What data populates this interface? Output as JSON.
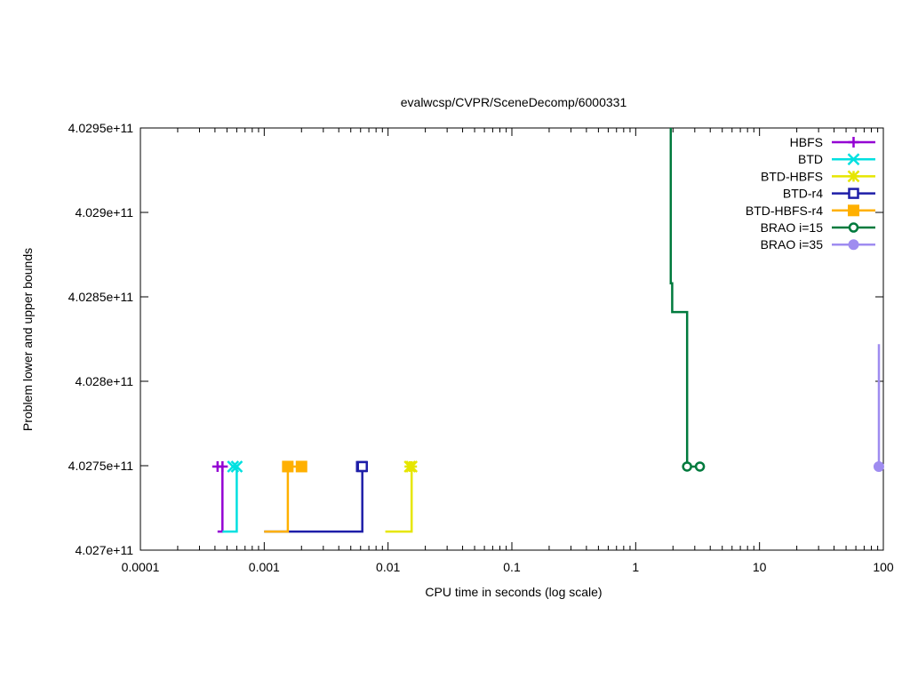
{
  "chart_data": {
    "type": "line",
    "title": "evalwcsp/CVPR/SceneDecomp/6000331",
    "xlabel": "CPU time in seconds (log scale)",
    "ylabel": "Problem lower and upper bounds",
    "xscale": "log",
    "xlim": [
      0.0001,
      100
    ],
    "ylim": [
      402700000000,
      402950000000
    ],
    "x_ticks": [
      {
        "value": 0.0001,
        "label": "0.0001"
      },
      {
        "value": 0.001,
        "label": "0.001"
      },
      {
        "value": 0.01,
        "label": "0.01"
      },
      {
        "value": 0.1,
        "label": "0.1"
      },
      {
        "value": 1,
        "label": "1"
      },
      {
        "value": 10,
        "label": "10"
      },
      {
        "value": 100,
        "label": "100"
      }
    ],
    "y_ticks": [
      {
        "value": 402700000000,
        "label": "4.027e+11"
      },
      {
        "value": 402750000000,
        "label": "4.0275e+11"
      },
      {
        "value": 402800000000,
        "label": "4.028e+11"
      },
      {
        "value": 402850000000,
        "label": "4.0285e+11"
      },
      {
        "value": 402900000000,
        "label": "4.029e+11"
      },
      {
        "value": 402950000000,
        "label": "4.0295e+11"
      }
    ],
    "grid": false,
    "legend_position": "top-right",
    "series": [
      {
        "name": "HBFS",
        "color": "#9400d3",
        "marker": "plus",
        "lines": [
          [
            [
              0.00042,
              402711000000
            ],
            [
              0.00046,
              402711000000
            ],
            [
              0.00046,
              402749500000
            ],
            [
              0.00042,
              402749500000
            ]
          ]
        ],
        "markers": [
          [
            0.00042,
            402749500000
          ],
          [
            0.00046,
            402749500000
          ]
        ]
      },
      {
        "name": "BTD",
        "color": "#00e0e0",
        "marker": "x",
        "lines": [
          [
            [
              0.00046,
              402711000000
            ],
            [
              0.0006,
              402711000000
            ],
            [
              0.0006,
              402749500000
            ],
            [
              0.00056,
              402749500000
            ]
          ]
        ],
        "markers": [
          [
            0.00056,
            402749500000
          ],
          [
            0.0006,
            402749500000
          ]
        ]
      },
      {
        "name": "BTD-HBFS",
        "color": "#e6e600",
        "marker": "asterisk",
        "lines": [
          [
            [
              0.0095,
              402711000000
            ],
            [
              0.0155,
              402711000000
            ],
            [
              0.0155,
              402749500000
            ],
            [
              0.015,
              402749500000
            ]
          ]
        ],
        "markers": [
          [
            0.015,
            402749500000
          ],
          [
            0.0155,
            402749500000
          ]
        ]
      },
      {
        "name": "BTD-r4",
        "color": "#1e1ea8",
        "marker": "open-square",
        "lines": [
          [
            [
              0.001,
              402711000000
            ],
            [
              0.0062,
              402711000000
            ],
            [
              0.0062,
              402749500000
            ]
          ]
        ],
        "markers": [
          [
            0.0061,
            402749500000
          ],
          [
            0.0062,
            402749500000
          ]
        ]
      },
      {
        "name": "BTD-HBFS-r4",
        "color": "#ffb000",
        "marker": "filled-square",
        "lines": [
          [
            [
              0.001,
              402711000000
            ],
            [
              0.00155,
              402711000000
            ],
            [
              0.00155,
              402749500000
            ],
            [
              0.002,
              402749500000
            ]
          ]
        ],
        "markers": [
          [
            0.00155,
            402749500000
          ],
          [
            0.002,
            402749500000
          ]
        ]
      },
      {
        "name": "BRAO i=15",
        "color": "#007a3d",
        "marker": "open-circle",
        "lines": [
          [
            [
              1.92,
              402950000000
            ],
            [
              1.92,
              402858000000
            ],
            [
              1.97,
              402858000000
            ],
            [
              1.97,
              402841000000
            ],
            [
              2.6,
              402841000000
            ],
            [
              2.6,
              402749500000
            ],
            [
              3.3,
              402749500000
            ]
          ]
        ],
        "markers": [
          [
            2.6,
            402749500000
          ],
          [
            3.3,
            402749500000
          ]
        ]
      },
      {
        "name": "BRAO i=35",
        "color": "#9f8cf0",
        "marker": "filled-circle",
        "lines": [
          [
            [
              92,
              402822000000
            ],
            [
              92,
              402749500000
            ]
          ]
        ],
        "markers": [
          [
            92,
            402749500000
          ]
        ]
      }
    ]
  }
}
